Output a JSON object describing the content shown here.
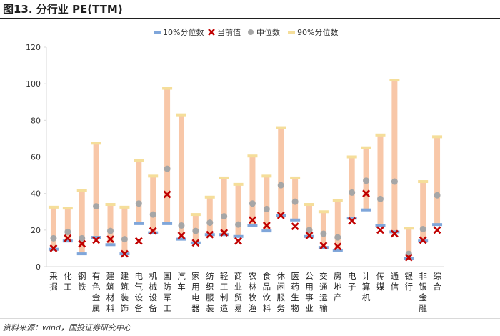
{
  "figure": {
    "title": "图13. 分行业 PE(TTM)",
    "source": "资料来源：wind，国投证券研究中心"
  },
  "colors": {
    "range_bar": "#F8C7A8",
    "p10": "#7FA6DA",
    "current": "#C00000",
    "median": "#A6A6A6",
    "p90": "#F5DE9A",
    "axis": "#D9D9D9"
  },
  "chart_data": {
    "type": "range-bar",
    "title": "",
    "xlabel": "",
    "ylabel": "",
    "ylim": [
      0,
      120
    ],
    "yticks": [
      0,
      20,
      40,
      60,
      80,
      100,
      120
    ],
    "legend": [
      "10%分位数",
      "当前值",
      "中位数",
      "90%分位数"
    ],
    "legend_position": "top",
    "categories": [
      "采掘",
      "化工",
      "钢铁",
      "有色金属",
      "建筑材料",
      "建筑装饰",
      "电气设备",
      "机械设备",
      "国防军工",
      "汽车",
      "家用电器",
      "纺织服装",
      "轻工制造",
      "商业贸易",
      "农林牧渔",
      "食品饮料",
      "休闲服务",
      "医药生物",
      "公用事业",
      "交通运输",
      "房地产",
      "电子",
      "计算机",
      "传媒",
      "通信",
      "银行",
      "非银金融",
      "综合"
    ],
    "series": [
      {
        "name": "10%分位数",
        "values": [
          9.5,
          14,
          7,
          16,
          12,
          7,
          23.5,
          18.5,
          23.5,
          15,
          13,
          17.5,
          17.5,
          16.5,
          22.5,
          19.5,
          28,
          25.5,
          16.5,
          10.5,
          9,
          26.5,
          31,
          22.5,
          19,
          4.5,
          14,
          23
        ]
      },
      {
        "name": "当前值",
        "values": [
          10,
          15.5,
          12.5,
          14.5,
          15,
          7,
          14,
          19.5,
          39.5,
          17,
          13,
          17.5,
          18.5,
          14,
          25.5,
          22.5,
          28,
          22,
          17,
          11.5,
          11,
          25,
          40,
          20,
          18,
          5,
          14.5,
          20
        ]
      },
      {
        "name": "中位数",
        "values": [
          15.5,
          19,
          15.5,
          33,
          19.5,
          15,
          34.5,
          28.5,
          53.5,
          22.5,
          19.5,
          24,
          27.5,
          23,
          34.5,
          31.5,
          44.5,
          35.5,
          20,
          18,
          16,
          40.5,
          47,
          37,
          46.5,
          7,
          20.5,
          39
        ]
      },
      {
        "name": "90%分位数",
        "values": [
          32.5,
          32,
          41.5,
          67.5,
          34,
          32.5,
          58,
          49.5,
          97.5,
          83,
          28.5,
          38,
          48.5,
          45,
          60.5,
          49.5,
          76,
          48.5,
          34,
          30,
          36,
          60,
          65,
          72,
          102,
          21,
          46.5,
          71
        ]
      }
    ]
  }
}
